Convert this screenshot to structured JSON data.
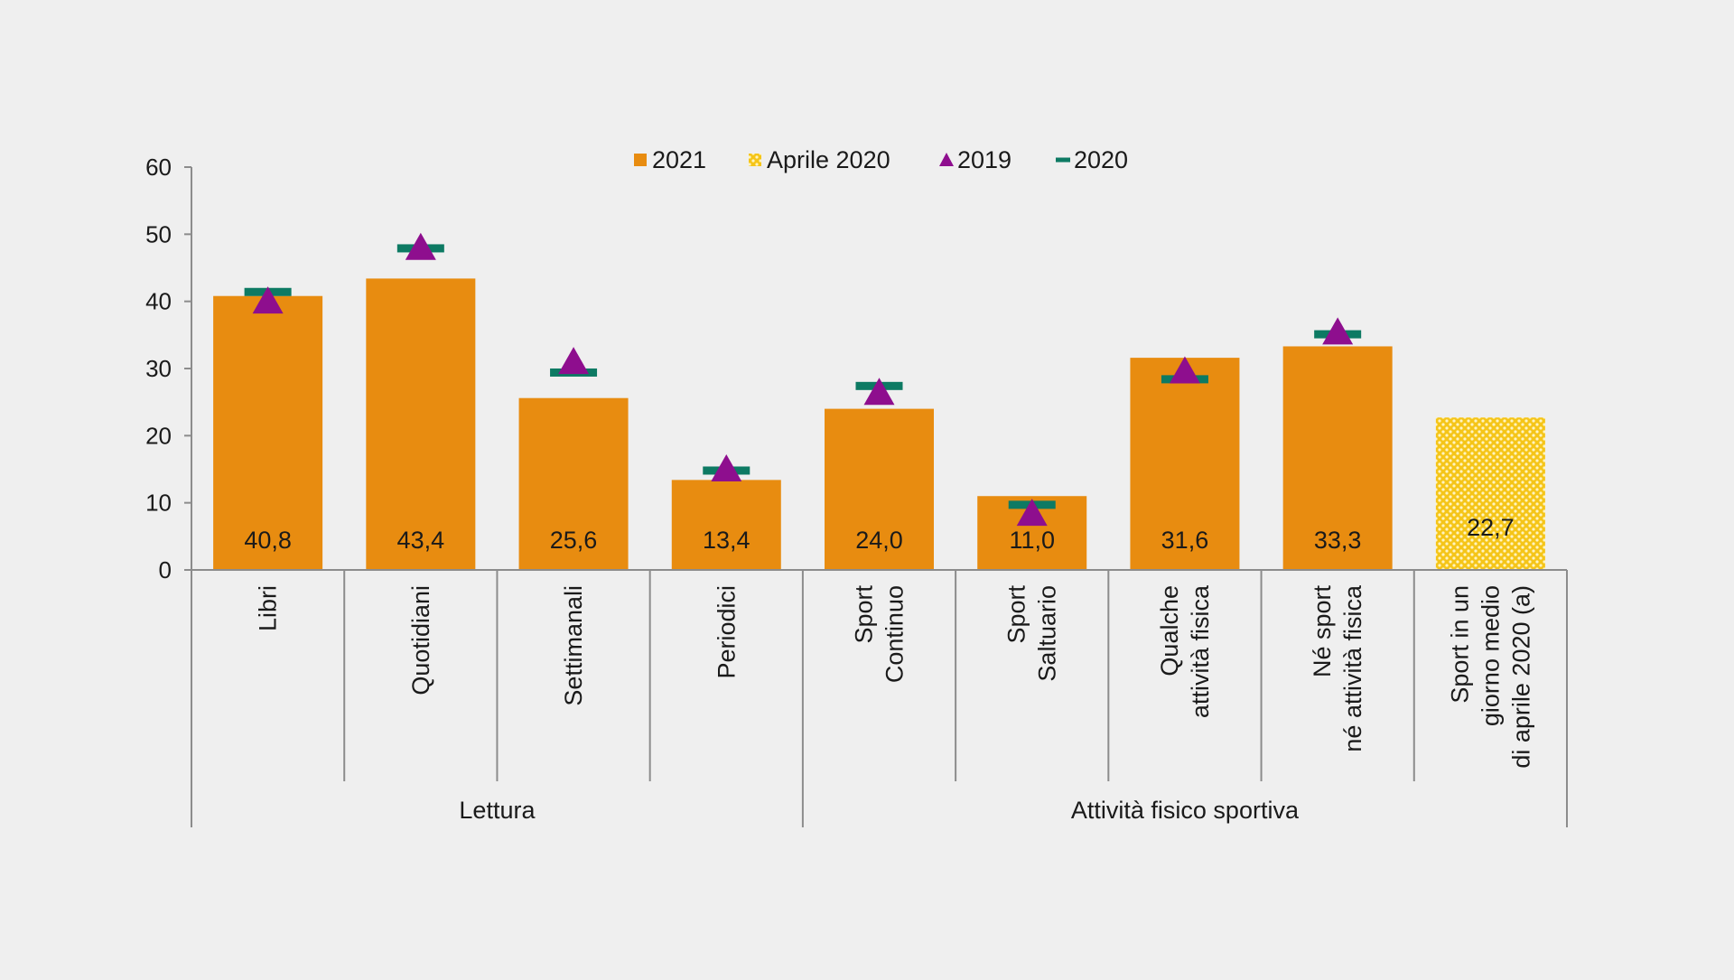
{
  "chart_data": {
    "type": "bar",
    "categories": [
      [
        "Libri"
      ],
      [
        "Quotidiani"
      ],
      [
        "Settimanali"
      ],
      [
        "Periodici"
      ],
      [
        "Sport",
        "Continuo"
      ],
      [
        "Sport",
        "Saltuario"
      ],
      [
        "Qualche",
        "attività fisica"
      ],
      [
        "Né sport",
        "né attività fisica"
      ],
      [
        "Sport in un",
        "giorno medio",
        "di aprile 2020 (a)"
      ]
    ],
    "groups": [
      {
        "label": "Lettura",
        "from": 0,
        "to": 3
      },
      {
        "label": "Attività fisico sportiva",
        "from": 4,
        "to": 8
      }
    ],
    "series": [
      {
        "name": "2021",
        "kind": "bar",
        "color": "#e88c10",
        "values": [
          40.8,
          43.4,
          25.6,
          13.4,
          24.0,
          11.0,
          31.6,
          33.3,
          null
        ]
      },
      {
        "name": "Aprile 2020",
        "kind": "bar-pattern",
        "color": "#f5c518",
        "values": [
          null,
          null,
          null,
          null,
          null,
          null,
          null,
          null,
          22.7
        ]
      },
      {
        "name": "2019",
        "kind": "marker-triangle",
        "color": "#8e0e8e",
        "values": [
          40.2,
          48.2,
          31.2,
          15.2,
          26.6,
          8.6,
          29.8,
          35.6,
          null
        ]
      },
      {
        "name": "2020",
        "kind": "marker-dash",
        "color": "#0d7a63",
        "values": [
          41.4,
          47.9,
          29.4,
          14.8,
          27.4,
          9.7,
          28.4,
          35.1,
          null
        ]
      }
    ],
    "data_labels": [
      "40,8",
      "43,4",
      "25,6",
      "13,4",
      "24,0",
      "11,0",
      "31,6",
      "33,3",
      "22,7"
    ],
    "y_ticks": [
      "0",
      "10",
      "20",
      "30",
      "40",
      "50",
      "60"
    ],
    "ylim": [
      0,
      60
    ],
    "grid": false,
    "legend_position": "top-center",
    "title": "",
    "xlabel": "",
    "ylabel": ""
  }
}
